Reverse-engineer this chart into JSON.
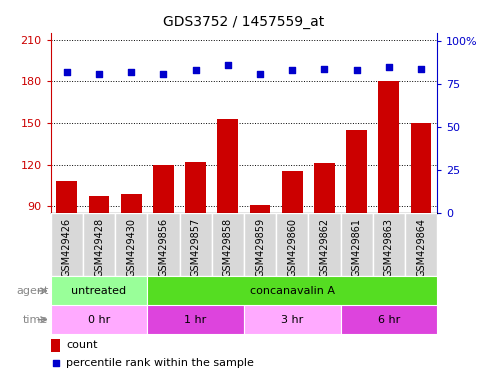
{
  "title": "GDS3752 / 1457559_at",
  "samples": [
    "GSM429426",
    "GSM429428",
    "GSM429430",
    "GSM429856",
    "GSM429857",
    "GSM429858",
    "GSM429859",
    "GSM429860",
    "GSM429862",
    "GSM429861",
    "GSM429863",
    "GSM429864"
  ],
  "count_values": [
    108,
    97,
    99,
    120,
    122,
    153,
    91,
    115,
    121,
    145,
    180,
    150
  ],
  "percentile_values": [
    82,
    81,
    82,
    81,
    83,
    86,
    81,
    83,
    84,
    83,
    85,
    84
  ],
  "ylim_left": [
    85,
    215
  ],
  "yticks_left": [
    90,
    120,
    150,
    180,
    210
  ],
  "ylim_right": [
    0,
    105
  ],
  "yticks_right": [
    0,
    25,
    50,
    75,
    100
  ],
  "bar_color": "#cc0000",
  "dot_color": "#0000cc",
  "agent_groups": [
    {
      "label": "untreated",
      "start": 0,
      "end": 3,
      "color": "#99ff99"
    },
    {
      "label": "concanavalin A",
      "start": 3,
      "end": 12,
      "color": "#55dd22"
    }
  ],
  "time_groups": [
    {
      "label": "0 hr",
      "start": 0,
      "end": 3,
      "color": "#ffaaff"
    },
    {
      "label": "1 hr",
      "start": 3,
      "end": 6,
      "color": "#dd44dd"
    },
    {
      "label": "3 hr",
      "start": 6,
      "end": 9,
      "color": "#ffaaff"
    },
    {
      "label": "6 hr",
      "start": 9,
      "end": 12,
      "color": "#dd44dd"
    }
  ],
  "title_fontsize": 10,
  "tick_fontsize": 8,
  "sample_fontsize": 7,
  "annot_fontsize": 8,
  "legend_fontsize": 8
}
